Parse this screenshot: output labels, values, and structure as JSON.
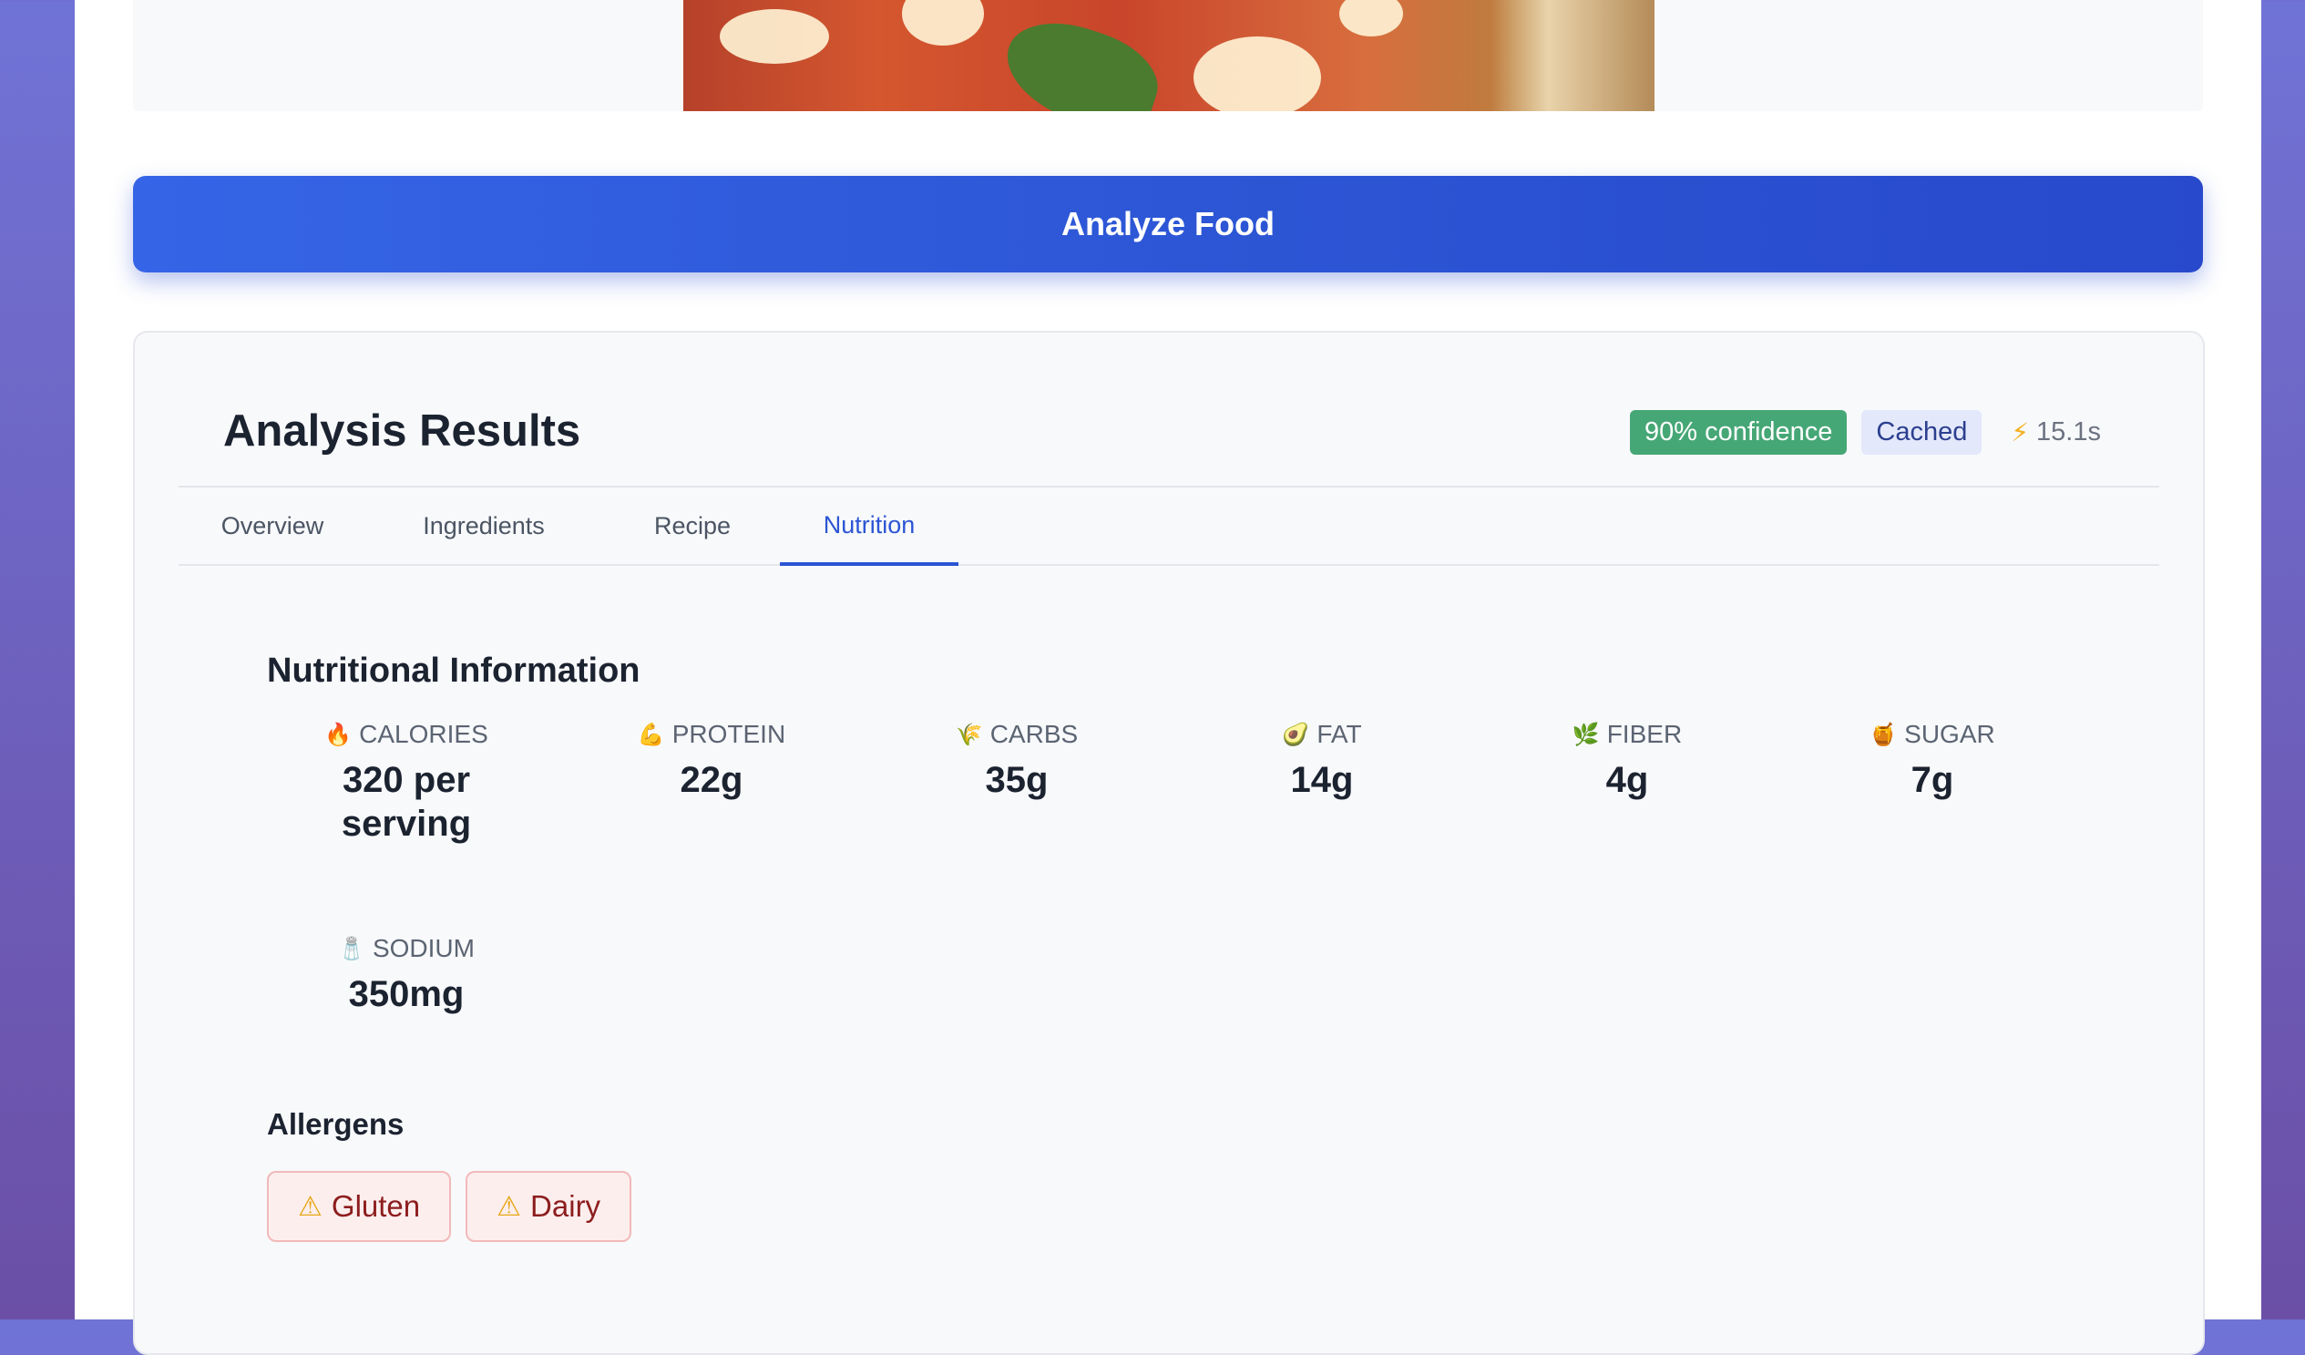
{
  "analyze_button": {
    "label": "Analyze Food"
  },
  "results": {
    "title": "Analysis Results",
    "confidence": "90% confidence",
    "cached": "Cached",
    "timing": "15.1s",
    "tabs": [
      {
        "label": "Overview"
      },
      {
        "label": "Ingredients"
      },
      {
        "label": "Recipe"
      },
      {
        "label": "Nutrition"
      }
    ],
    "active_tab": "Nutrition"
  },
  "nutrition": {
    "title": "Nutritional Information",
    "items": [
      {
        "icon": "🔥",
        "icon_name": "fire-icon",
        "label": "CALORIES",
        "value": "320 per serving"
      },
      {
        "icon": "💪",
        "icon_name": "flexed-arm-icon",
        "label": "PROTEIN",
        "value": "22g"
      },
      {
        "icon": "🌾",
        "icon_name": "grain-icon",
        "label": "CARBS",
        "value": "35g"
      },
      {
        "icon": "🥑",
        "icon_name": "avocado-icon",
        "label": "FAT",
        "value": "14g"
      },
      {
        "icon": "🌿",
        "icon_name": "herb-icon",
        "label": "FIBER",
        "value": "4g"
      },
      {
        "icon": "🍯",
        "icon_name": "honey-pot-icon",
        "label": "SUGAR",
        "value": "7g"
      },
      {
        "icon": "🧂",
        "icon_name": "salt-shaker-icon",
        "label": "SODIUM",
        "value": "350mg"
      }
    ]
  },
  "allergens": {
    "title": "Allergens",
    "items": [
      {
        "icon": "⚠",
        "label": "Gluten"
      },
      {
        "icon": "⚠",
        "label": "Dairy"
      }
    ]
  },
  "colors": {
    "primary": "#2c55d4",
    "confidence_badge": "#46a776",
    "cached_badge_bg": "#e3e8fb",
    "allergen_bg": "#fdeeee",
    "allergen_text": "#8c1d1d"
  }
}
